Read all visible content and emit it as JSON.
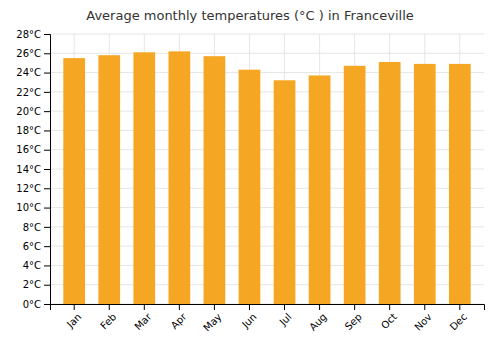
{
  "chart_data": {
    "type": "bar",
    "title": "Average monthly temperatures (°C ) in Franceville",
    "categories": [
      "Jan",
      "Feb",
      "Mar",
      "Apr",
      "May",
      "Jun",
      "Jul",
      "Aug",
      "Sep",
      "Oct",
      "Nov",
      "Dec"
    ],
    "values": [
      25.5,
      25.8,
      26.1,
      26.2,
      25.7,
      24.3,
      23.2,
      23.7,
      24.7,
      25.1,
      24.9,
      24.9
    ],
    "color": "#F5A623",
    "ylim": [
      0,
      28
    ],
    "yticks": [
      {
        "value": 0,
        "label": "0°C"
      },
      {
        "value": 2,
        "label": "2°C"
      },
      {
        "value": 4,
        "label": "4°C"
      },
      {
        "value": 6,
        "label": "6°C"
      },
      {
        "value": 8,
        "label": "8°C"
      },
      {
        "value": 10,
        "label": "10°C"
      },
      {
        "value": 12,
        "label": "12°C"
      },
      {
        "value": 14,
        "label": "14°C"
      },
      {
        "value": 16,
        "label": "16°C"
      },
      {
        "value": 18,
        "label": "18°C"
      },
      {
        "value": 20,
        "label": "20°C"
      },
      {
        "value": 22,
        "label": "22°C"
      },
      {
        "value": 24,
        "label": "24°C"
      },
      {
        "value": 26,
        "label": "26°C"
      },
      {
        "value": 28,
        "label": "28°C"
      }
    ],
    "grid": true
  }
}
